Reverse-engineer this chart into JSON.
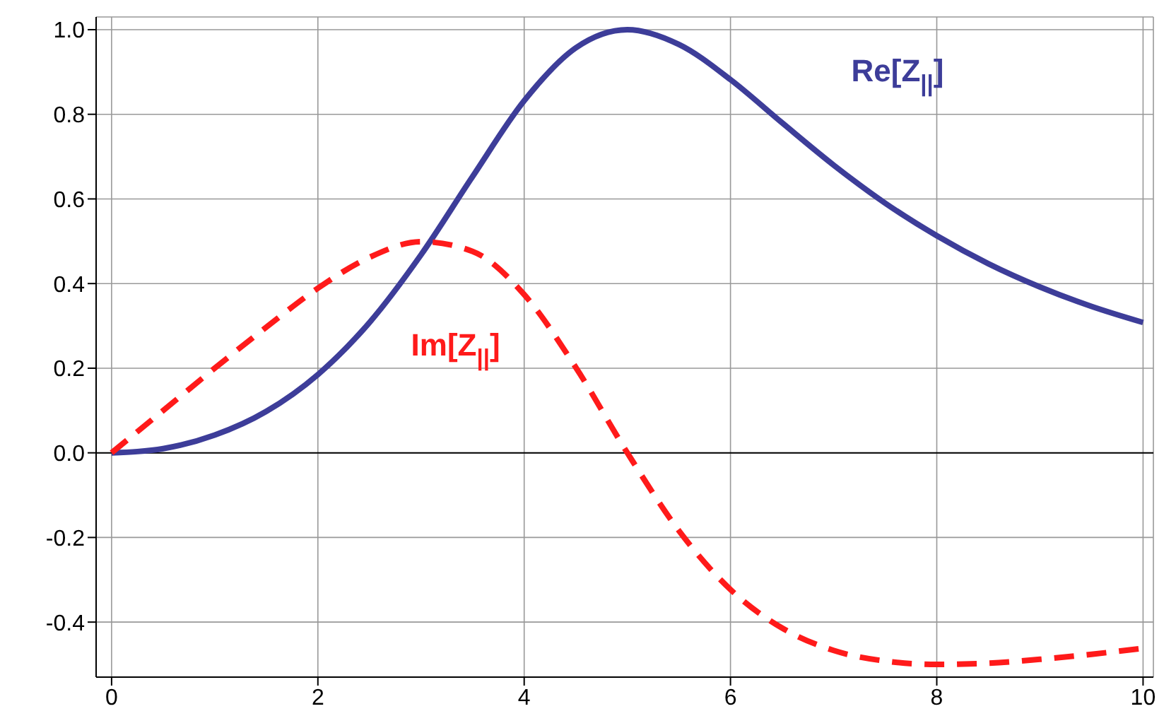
{
  "chart_data": {
    "type": "line",
    "x": [
      0,
      0.25,
      0.5,
      1,
      1.5,
      2,
      2.5,
      3,
      3.5,
      4,
      4.5,
      5,
      5.5,
      6,
      6.5,
      7,
      7.5,
      8,
      8.5,
      9,
      9.5,
      10
    ],
    "series": [
      {
        "color": "#3d3d99",
        "line_style": "solid",
        "values": [
          0,
          0.003,
          0.01,
          0.042,
          0.098,
          0.185,
          0.308,
          0.468,
          0.653,
          0.832,
          0.957,
          1,
          0.965,
          0.882,
          0.78,
          0.68,
          0.59,
          0.513,
          0.447,
          0.392,
          0.346,
          0.308
        ]
      },
      {
        "color": "#ff1a1a",
        "line_style": "dashed",
        "values": [
          0,
          0.05,
          0.1,
          0.2,
          0.297,
          0.389,
          0.462,
          0.499,
          0.476,
          0.374,
          0.202,
          0,
          -0.184,
          -0.323,
          -0.414,
          -0.467,
          -0.492,
          -0.5,
          -0.497,
          -0.488,
          -0.476,
          -0.462
        ]
      }
    ],
    "xlim": [
      -0.15,
      10.1
    ],
    "xticks": [
      0,
      2,
      4,
      6,
      8,
      10
    ],
    "ylim": [
      -0.53,
      1.03
    ],
    "yticks": [
      {
        "value": -0.4,
        "label": "-0.4"
      },
      {
        "value": -0.2,
        "label": "-0.2"
      },
      {
        "value": 0,
        "label": "0.0"
      },
      {
        "value": 0.2,
        "label": "0.2"
      },
      {
        "value": 0.4,
        "label": "0.4"
      },
      {
        "value": 0.6,
        "label": "0.6"
      },
      {
        "value": 0.8,
        "label": "0.8"
      },
      {
        "value": 1,
        "label": "1.0"
      }
    ],
    "grid": true,
    "marker": "none",
    "ref_lines": [
      {
        "axis": "y",
        "value": 0,
        "color": "#000000"
      }
    ],
    "annotations": [
      "Re[Z$_{||}$]",
      "Im[Z$_{||}$]"
    ]
  }
}
